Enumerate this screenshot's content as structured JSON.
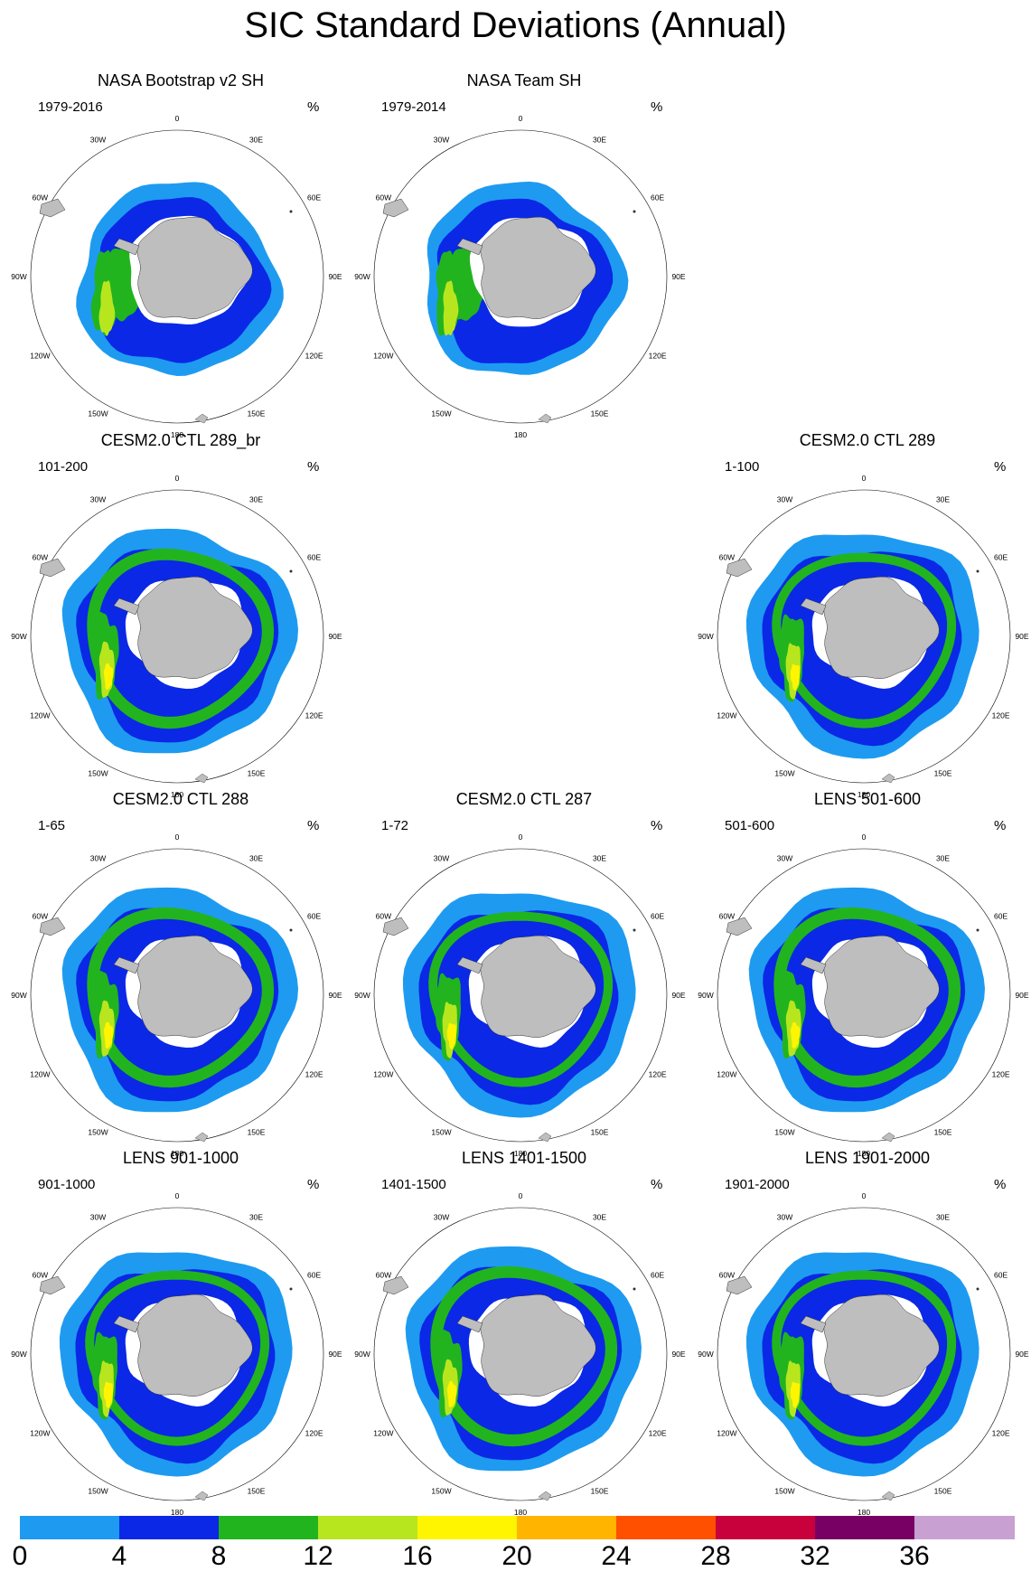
{
  "title": "SIC Standard Deviations (Annual)",
  "unit": "%",
  "map_labels": {
    "lon": [
      "0",
      "30E",
      "60E",
      "90E",
      "120E",
      "150E",
      "180",
      "150W",
      "120W",
      "90W",
      "60W",
      "30W"
    ]
  },
  "panels": [
    {
      "title": "NASA Bootstrap v2 SH",
      "period": "1979-2016",
      "variant": 0,
      "row": 0,
      "col": 0
    },
    {
      "title": "NASA Team SH",
      "period": "1979-2014",
      "variant": 1,
      "row": 0,
      "col": 1
    },
    {
      "title": "CESM2.0 CTL 289_br",
      "period": "101-200",
      "variant": 2,
      "row": 1,
      "col": 0
    },
    {
      "title": "CESM2.0 CTL 289",
      "period": "1-100",
      "variant": 3,
      "row": 1,
      "col": 2
    },
    {
      "title": "CESM2.0 CTL 288",
      "period": "1-65",
      "variant": 2,
      "row": 2,
      "col": 0
    },
    {
      "title": "CESM2.0 CTL 287",
      "period": "1-72",
      "variant": 3,
      "row": 2,
      "col": 1
    },
    {
      "title": "LENS 501-600",
      "period": "501-600",
      "variant": 2,
      "row": 2,
      "col": 2
    },
    {
      "title": "LENS 901-1000",
      "period": "901-1000",
      "variant": 3,
      "row": 3,
      "col": 0
    },
    {
      "title": "LENS 1401-1500",
      "period": "1401-1500",
      "variant": 2,
      "row": 3,
      "col": 1
    },
    {
      "title": "LENS 1901-2000",
      "period": "1901-2000",
      "variant": 3,
      "row": 3,
      "col": 2
    }
  ],
  "colorbar": {
    "ticks": [
      "0",
      "4",
      "8",
      "12",
      "16",
      "20",
      "24",
      "28",
      "32",
      "36"
    ],
    "colors": [
      "#1e9bf0",
      "#0a28e6",
      "#22b41e",
      "#b8e61e",
      "#fff500",
      "#ffb400",
      "#ff5000",
      "#c8003c",
      "#780064",
      "#c8a0d2"
    ]
  },
  "colors": {
    "land": "#bebebe",
    "ocean": "#ffffff"
  }
}
